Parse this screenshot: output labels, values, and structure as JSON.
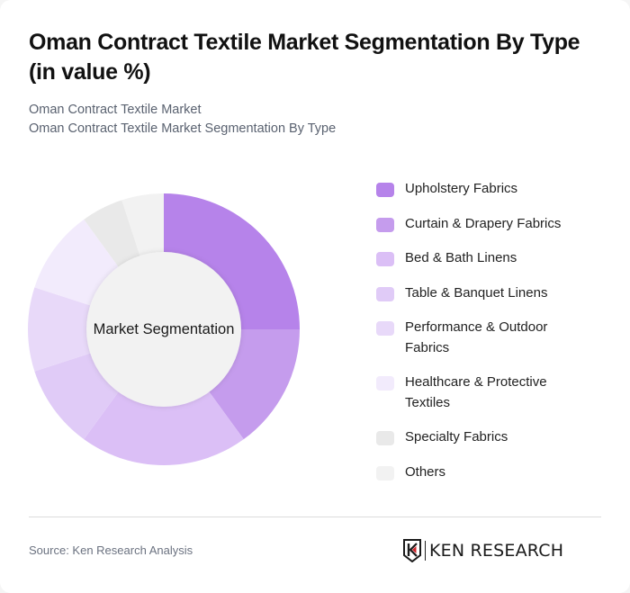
{
  "header": {
    "title": "Oman Contract Textile Market Segmentation By Type (in value %)",
    "breadcrumb": [
      "Oman Contract Textile Market",
      "Oman Contract Textile Market Segmentation By Type"
    ]
  },
  "chart": {
    "center_label": "Market Segmentation"
  },
  "legend": [
    {
      "label": "Upholstery Fabrics",
      "color": "#b683ea"
    },
    {
      "label": "Curtain & Drapery Fabrics",
      "color": "#c59ced"
    },
    {
      "label": "Bed & Bath Linens",
      "color": "#dbbff6"
    },
    {
      "label": "Table & Banquet Linens",
      "color": "#e0cbf7"
    },
    {
      "label": "Performance & Outdoor Fabrics",
      "color": "#e8d9f9"
    },
    {
      "label": "Healthcare & Protective Textiles",
      "color": "#f2ebfc"
    },
    {
      "label": "Specialty Fabrics",
      "color": "#e9e9e9"
    },
    {
      "label": "Others",
      "color": "#f2f2f2"
    }
  ],
  "footer": {
    "source": "Source: Ken Research Analysis",
    "logo_text": "KEN RESEARCH",
    "logo_accent": "#d0242b"
  },
  "chart_data": {
    "type": "pie",
    "subtype": "donut",
    "title": "Oman Contract Textile Market Segmentation By Type (in value %)",
    "center_label": "Market Segmentation",
    "categories": [
      "Upholstery Fabrics",
      "Curtain & Drapery Fabrics",
      "Bed & Bath Linens",
      "Table & Banquet Linens",
      "Performance & Outdoor Fabrics",
      "Healthcare & Protective Textiles",
      "Specialty Fabrics",
      "Others"
    ],
    "values": [
      25,
      15,
      20,
      10,
      10,
      10,
      5,
      5
    ],
    "unit": "%",
    "colors": [
      "#b683ea",
      "#c59ced",
      "#dbbff6",
      "#e0cbf7",
      "#e8d9f9",
      "#f2ebfc",
      "#e9e9e9",
      "#f2f2f2"
    ],
    "start_angle_deg": 0,
    "direction": "clockwise",
    "legend_position": "right"
  }
}
